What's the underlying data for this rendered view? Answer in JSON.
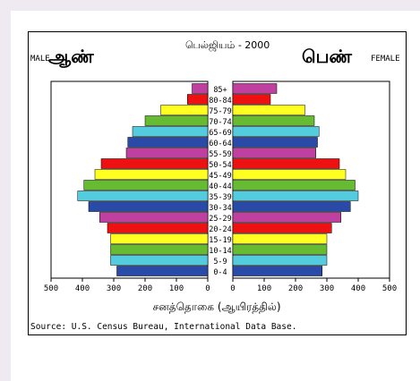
{
  "chart_data": {
    "type": "bar",
    "title": "பெல்ஜியம் - 2000",
    "left_label_small": "MALE",
    "left_label_big": "ஆண்",
    "right_label_big": "பெண்",
    "right_label_small": "FEMALE",
    "xlabel": "சனத்தொகை (ஆயிரத்தில்)",
    "source": "Source: U.S. Census Bureau, International Data Base.",
    "xlim": [
      0,
      500
    ],
    "x_ticks": [
      "500",
      "400",
      "300",
      "200",
      "100",
      "0"
    ],
    "x_ticks_right": [
      "0",
      "100",
      "200",
      "300",
      "400",
      "500"
    ],
    "categories": [
      "85+",
      "80-84",
      "75-79",
      "70-74",
      "65-69",
      "60-64",
      "55-59",
      "50-54",
      "45-49",
      "40-44",
      "35-39",
      "30-34",
      "25-29",
      "20-24",
      "15-19",
      "10-14",
      "5-9",
      "0-4"
    ],
    "series": [
      {
        "name": "MALE",
        "values": [
          50,
          65,
          150,
          200,
          240,
          255,
          260,
          340,
          360,
          395,
          415,
          380,
          345,
          320,
          310,
          310,
          310,
          290
        ]
      },
      {
        "name": "FEMALE",
        "values": [
          140,
          120,
          230,
          260,
          275,
          270,
          265,
          340,
          360,
          390,
          400,
          375,
          345,
          315,
          300,
          300,
          300,
          285
        ]
      }
    ],
    "bar_colors": [
      "#c040a0",
      "#ee1111",
      "#ffff22",
      "#66bb33",
      "#55ccdd",
      "#2a4aa8"
    ],
    "grid": true,
    "legend": "none"
  }
}
